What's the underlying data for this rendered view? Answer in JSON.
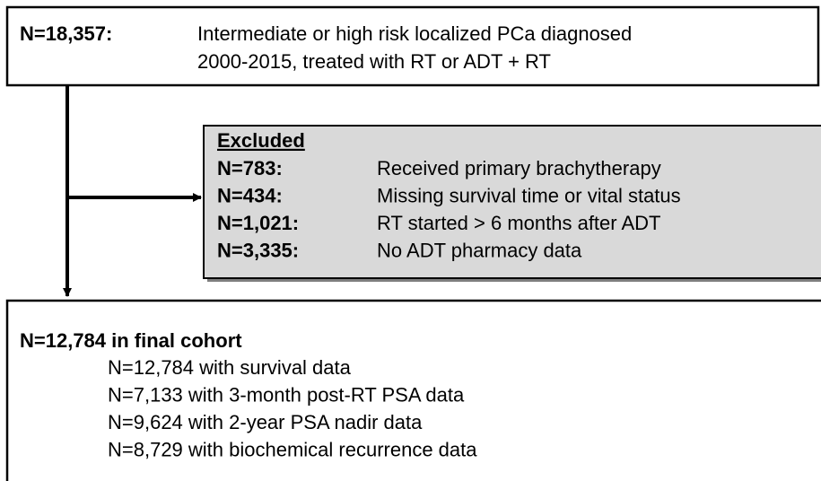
{
  "top": {
    "count": "N=18,357:",
    "lines": [
      "Intermediate or high risk localized PCa diagnosed",
      "2000-2015, treated with RT or ADT + RT"
    ]
  },
  "excluded": {
    "title": "Excluded",
    "rows": [
      {
        "count": "N=783:",
        "reason": "Received primary brachytherapy"
      },
      {
        "count": "N=434:",
        "reason": "Missing survival time or vital status"
      },
      {
        "count": "N=1,021:",
        "reason": "RT started > 6 months after ADT"
      },
      {
        "count": "N=3,335:",
        "reason": "No ADT pharmacy data"
      }
    ]
  },
  "final": {
    "title": "N=12,784 in final cohort",
    "items": [
      "N=12,784 with survival data",
      "N=7,133 with 3-month post-RT PSA data",
      "N=9,624 with 2-year PSA nadir data",
      "N=8,729 with biochemical recurrence data"
    ]
  }
}
